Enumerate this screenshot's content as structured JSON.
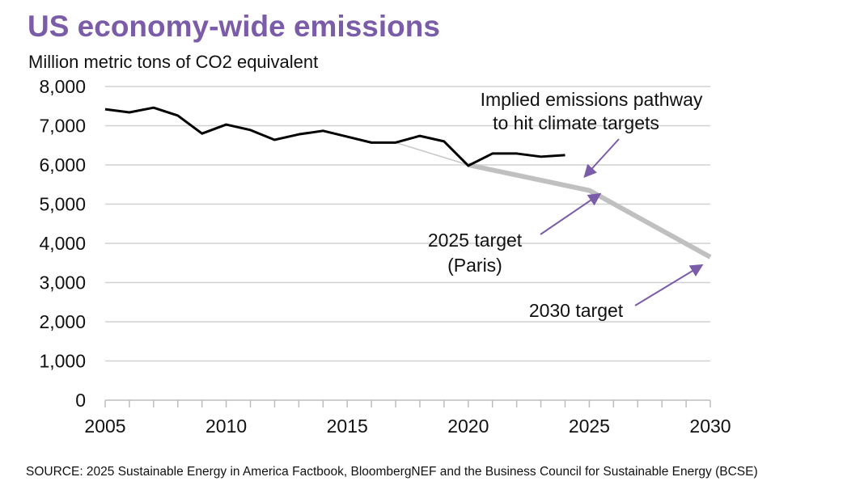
{
  "chart_data": {
    "type": "line",
    "title": "US economy-wide emissions",
    "ylabel": "Million metric tons of CO2 equivalent",
    "xlabel": "",
    "xlim": [
      2005,
      2030
    ],
    "ylim": [
      0,
      8000
    ],
    "x_ticks": [
      2005,
      2010,
      2015,
      2020,
      2025,
      2030
    ],
    "y_ticks": [
      0,
      1000,
      2000,
      3000,
      4000,
      5000,
      6000,
      7000,
      8000
    ],
    "y_tick_labels": [
      "0",
      "1,000",
      "2,000",
      "3,000",
      "4,000",
      "5,000",
      "6,000",
      "7,000",
      "8,000"
    ],
    "grid": "horizontal",
    "series": [
      {
        "color": "#000000",
        "x": [
          2005,
          2006,
          2007,
          2008,
          2009,
          2010,
          2011,
          2012,
          2013,
          2014,
          2015,
          2016,
          2017,
          2018,
          2019,
          2020,
          2021,
          2022,
          2023,
          2024
        ],
        "y": [
          7420,
          7340,
          7460,
          7260,
          6800,
          7030,
          6890,
          6640,
          6780,
          6870,
          6720,
          6570,
          6570,
          6740,
          6600,
          5980,
          6290,
          6290,
          6210,
          6250
        ]
      },
      {
        "color": "#c8c8c8",
        "x": [
          2017,
          2020
        ],
        "y": [
          6570,
          6000
        ],
        "style": "thin"
      },
      {
        "color": "#c0c0c0",
        "x": [
          2020,
          2025,
          2030
        ],
        "y": [
          6000,
          5350,
          3650
        ],
        "style": "thick"
      }
    ],
    "annotations": [
      {
        "lines": [
          "Implied emissions pathway",
          "to hit climate targets"
        ],
        "points_to": [
          2025,
          5450
        ]
      },
      {
        "lines": [
          "2025 target",
          "(Paris)"
        ],
        "points_to": [
          2025,
          5300
        ]
      },
      {
        "lines": [
          "2030 target"
        ],
        "points_to": [
          2030,
          3650
        ]
      }
    ],
    "annotation_color": "#7b5ca8"
  },
  "source": "SOURCE: 2025 Sustainable Energy in America Factbook, BloombergNEF and the Business Council for Sustainable Energy (BCSE)"
}
